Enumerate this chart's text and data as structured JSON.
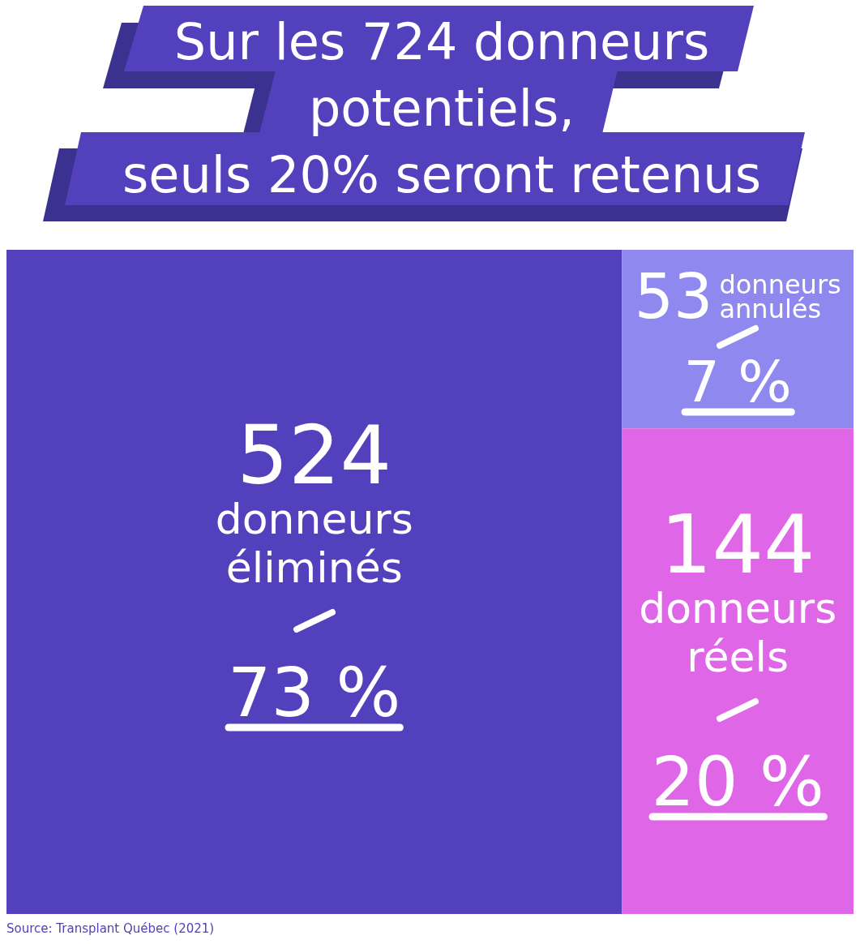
{
  "chart_data": {
    "type": "other",
    "title": "Sur les 724 donneurs\npotentiels,\nseuls 20% seront retenus",
    "categories": [
      "donneurs éliminés",
      "donneurs annulés",
      "donneurs réels"
    ],
    "series": [
      {
        "values": [
          524,
          53,
          144
        ],
        "colors": [
          "#5240bc",
          "#8e88ef",
          "#e066e8"
        ]
      },
      {
        "values": [
          73,
          7,
          20
        ],
        "value_labels": [
          "73 %",
          "7 %",
          "20 %"
        ]
      }
    ],
    "data_labels": true,
    "annotations": [
      "Source: Transplant Québec (2021)"
    ]
  }
}
